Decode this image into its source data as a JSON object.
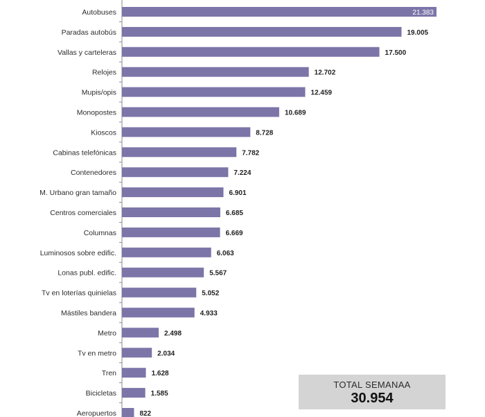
{
  "chart_data": {
    "type": "bar",
    "orientation": "horizontal",
    "categories": [
      "Autobuses",
      "Paradas autobús",
      "Vallas y carteleras",
      "Relojes",
      "Mupis/opis",
      "Monopostes",
      "Kioscos",
      "Cabinas telefónicas",
      "Contenedores",
      "M. Urbano gran tamaño",
      "Centros comerciales",
      "Columnas",
      "Luminosos sobre edific.",
      "Lonas publ. edific.",
      "Tv en loterías quinielas",
      "Mástiles bandera",
      "Metro",
      "Tv en metro",
      "Tren",
      "Bicicletas",
      "Aeropuertos"
    ],
    "values": [
      21383,
      19005,
      17500,
      12702,
      12459,
      10689,
      8728,
      7782,
      7224,
      6901,
      6685,
      6669,
      6063,
      5567,
      5052,
      4933,
      2498,
      2034,
      1628,
      1585,
      822
    ],
    "value_labels": [
      "21.383",
      "19.005",
      "17.500",
      "12.702",
      "12.459",
      "10.689",
      "8.728",
      "7.782",
      "7.224",
      "6.901",
      "6.685",
      "6.669",
      "6.063",
      "5.567",
      "5.052",
      "4.933",
      "2.498",
      "2.034",
      "1.628",
      "1.585",
      "822"
    ],
    "title": "",
    "xlabel": "",
    "ylabel": "",
    "xlim": [
      0,
      21383
    ],
    "grid": false,
    "bar_color": "#7b75a8"
  },
  "summary": {
    "label": "TOTAL SEMANAA",
    "value": "30.954"
  }
}
